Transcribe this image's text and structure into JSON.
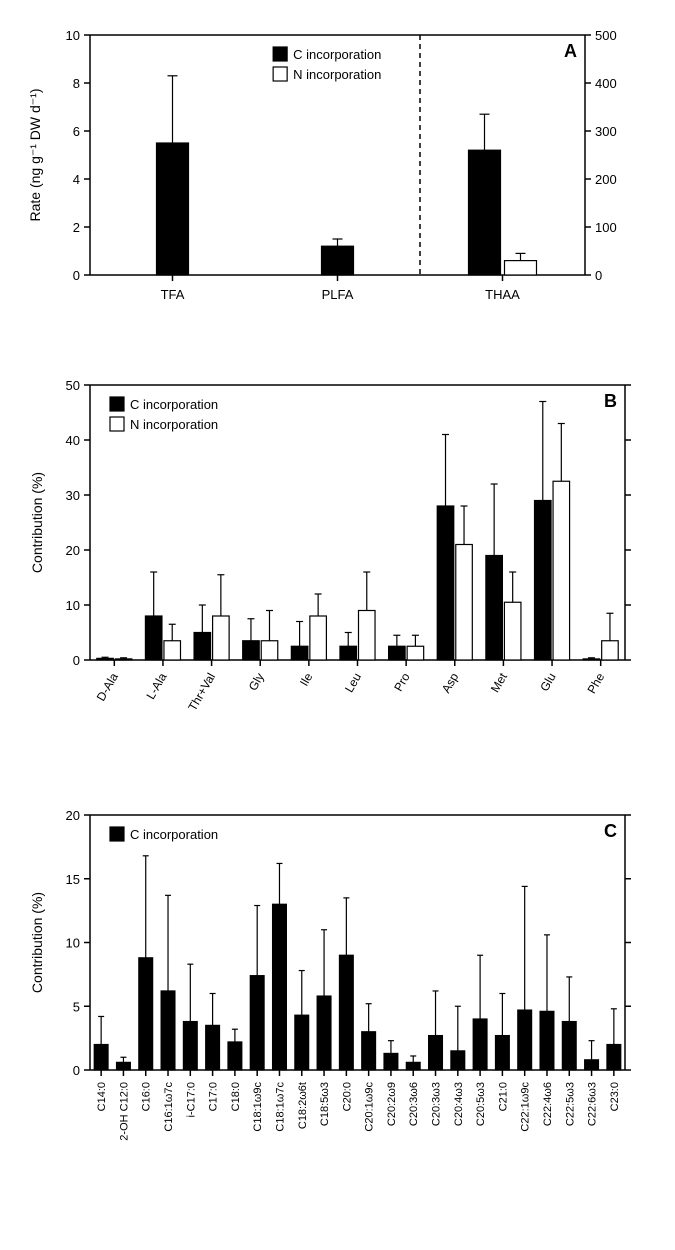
{
  "global": {
    "bar_fill_black": "#000000",
    "bar_fill_white": "#ffffff",
    "bar_stroke": "#000000",
    "axis_color": "#000000",
    "text_color": "#000000",
    "background": "#ffffff",
    "font_family": "Arial, Helvetica, sans-serif"
  },
  "panelA": {
    "label": "A",
    "type": "bar",
    "ylabel": "Rate (ng g⁻¹ DW d⁻¹)",
    "legend": [
      {
        "label": "C incorporation",
        "fill": "#000000"
      },
      {
        "label": "N incorporation",
        "fill": "#ffffff"
      }
    ],
    "left_axis": {
      "min": 0,
      "max": 10,
      "ticks": [
        0,
        2,
        4,
        6,
        8,
        10
      ]
    },
    "right_axis": {
      "min": 0,
      "max": 500,
      "ticks": [
        0,
        100,
        200,
        300,
        400,
        500
      ]
    },
    "divider_after_index": 1,
    "categories": [
      "TFA",
      "PLFA",
      "THAA"
    ],
    "series": {
      "C": {
        "values": [
          5.5,
          1.2,
          260
        ],
        "errors": [
          2.8,
          0.3,
          75
        ],
        "axis": [
          "left",
          "left",
          "right"
        ],
        "fill": "#000000"
      },
      "N": {
        "values": [
          null,
          null,
          30
        ],
        "errors": [
          null,
          null,
          15
        ],
        "axis": [
          "left",
          "left",
          "right"
        ],
        "fill": "#ffffff"
      }
    },
    "label_fontsize": 14,
    "tick_fontsize": 13,
    "panel_label_fontsize": 18
  },
  "panelB": {
    "label": "B",
    "type": "bar",
    "ylabel": "Contribution (%)",
    "legend": [
      {
        "label": "C incorporation",
        "fill": "#000000"
      },
      {
        "label": "N incorporation",
        "fill": "#ffffff"
      }
    ],
    "y_axis": {
      "min": 0,
      "max": 50,
      "ticks": [
        0,
        10,
        20,
        30,
        40,
        50
      ]
    },
    "categories": [
      "D-Ala",
      "L-Ala",
      "Thr+Val",
      "Gly",
      "Ile",
      "Leu",
      "Pro",
      "Asp",
      "Met",
      "Glu",
      "Phe"
    ],
    "series": {
      "C": {
        "values": [
          0.3,
          8,
          5,
          3.5,
          2.5,
          2.5,
          2.5,
          28,
          19,
          29,
          0.2
        ],
        "errors": [
          0.2,
          8,
          5,
          4,
          4.5,
          2.5,
          2,
          13,
          13,
          18,
          0.2
        ],
        "fill": "#000000"
      },
      "N": {
        "values": [
          0.2,
          3.5,
          8,
          3.5,
          8,
          9,
          2.5,
          21,
          10.5,
          32.5,
          3.5
        ],
        "errors": [
          0.2,
          3,
          7.5,
          5.5,
          4,
          7,
          2,
          7,
          5.5,
          10.5,
          5
        ],
        "fill": "#ffffff"
      }
    },
    "label_fontsize": 14,
    "tick_fontsize": 13,
    "panel_label_fontsize": 18,
    "xlabel_rotate": -60
  },
  "panelC": {
    "label": "C",
    "type": "bar",
    "ylabel": "Contribution (%)",
    "legend": [
      {
        "label": "C incorporation",
        "fill": "#000000"
      }
    ],
    "y_axis": {
      "min": 0,
      "max": 20,
      "ticks": [
        0,
        5,
        10,
        15,
        20
      ]
    },
    "categories": [
      "C14:0",
      "2-OH C12:0",
      "C16:0",
      "C16:1ω7c",
      "i-C17:0",
      "C17:0",
      "C18:0",
      "C18:1ω9c",
      "C18:1ω7c",
      "C18:2ω6t",
      "C18:5ω3",
      "C20:0",
      "C20:1ω9c",
      "C20:2ω9",
      "C20:3ω6",
      "C20:3ω3",
      "C20:4ω3",
      "C20:5ω3",
      "C21:0",
      "C22:1ω9c",
      "C22:4ω6",
      "C22:5ω3",
      "C22:6ω3",
      "C23:0"
    ],
    "series": {
      "C": {
        "values": [
          2,
          0.6,
          8.8,
          6.2,
          3.8,
          3.5,
          2.2,
          7.4,
          13,
          4.3,
          5.8,
          9,
          3,
          1.3,
          0.6,
          2.7,
          1.5,
          4,
          2.7,
          4.7,
          4.6,
          3.8,
          0.8,
          2
        ],
        "errors": [
          2.2,
          0.4,
          8,
          7.5,
          4.5,
          2.5,
          1,
          5.5,
          3.2,
          3.5,
          5.2,
          4.5,
          2.2,
          1,
          0.5,
          3.5,
          3.5,
          5,
          3.3,
          9.7,
          6,
          3.5,
          1.5,
          2.8
        ],
        "fill": "#000000"
      }
    },
    "label_fontsize": 14,
    "tick_fontsize": 13,
    "panel_label_fontsize": 18,
    "xlabel_rotate": -90
  }
}
